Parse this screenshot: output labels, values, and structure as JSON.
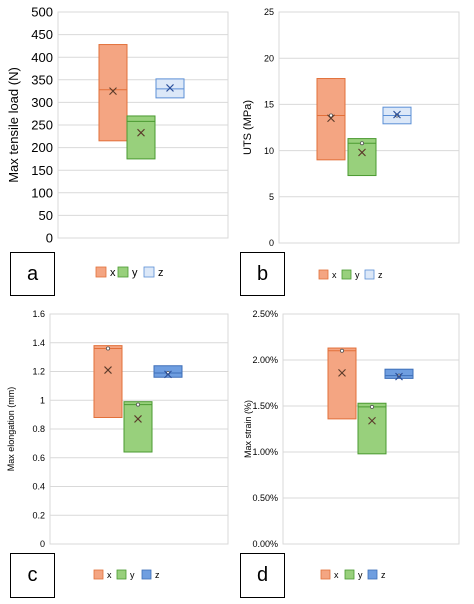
{
  "chart_data": [
    {
      "type": "box",
      "panel_label": "a",
      "ylabel": "Max tensile load (N)",
      "ylim": [
        0,
        500
      ],
      "yticks": [
        "0",
        "50",
        "100",
        "150",
        "200",
        "250",
        "300",
        "350",
        "400",
        "450",
        "500"
      ],
      "ytick_values": [
        0,
        50,
        100,
        150,
        200,
        250,
        300,
        350,
        400,
        450,
        500
      ],
      "grid": true,
      "legend": "bottom",
      "series": [
        {
          "name": "x",
          "q1": 215,
          "median": 328,
          "q3": 428,
          "mean": 325,
          "color": "#f4a582",
          "edge": "#e2703a"
        },
        {
          "name": "y",
          "q1": 175,
          "median": 258,
          "q3": 270,
          "mean": 233,
          "color": "#98d07c",
          "edge": "#4a9a30"
        },
        {
          "name": "z",
          "q1": 310,
          "median": 330,
          "q3": 352,
          "mean": 332,
          "color": "#dce8f8",
          "edge": "#5b8fd6"
        }
      ]
    },
    {
      "type": "box",
      "panel_label": "b",
      "ylabel": "UTS (MPa)",
      "ylim": [
        0,
        25
      ],
      "yticks": [
        "0",
        "5",
        "10",
        "15",
        "20",
        "25"
      ],
      "ytick_values": [
        0,
        5,
        10,
        15,
        20,
        25
      ],
      "grid": true,
      "legend": "bottom",
      "series": [
        {
          "name": "x",
          "q1": 9.0,
          "median": 13.8,
          "q3": 17.8,
          "mean": 13.5,
          "color": "#f4a582",
          "edge": "#e2703a"
        },
        {
          "name": "y",
          "q1": 7.3,
          "median": 10.8,
          "q3": 11.3,
          "mean": 9.8,
          "color": "#98d07c",
          "edge": "#4a9a30"
        },
        {
          "name": "z",
          "q1": 12.9,
          "median": 13.8,
          "q3": 14.7,
          "mean": 13.9,
          "color": "#dce8f8",
          "edge": "#5b8fd6"
        }
      ]
    },
    {
      "type": "box",
      "panel_label": "c",
      "ylabel": "Max elongation (mm)",
      "ylim": [
        0,
        1.6
      ],
      "yticks": [
        "0",
        "0.2",
        "0.4",
        "0.6",
        "0.8",
        "1",
        "1.2",
        "1.4",
        "1.6"
      ],
      "ytick_values": [
        0,
        0.2,
        0.4,
        0.6,
        0.8,
        1.0,
        1.2,
        1.4,
        1.6
      ],
      "grid": true,
      "legend": "bottom",
      "series": [
        {
          "name": "x",
          "q1": 0.88,
          "median": 1.36,
          "q3": 1.38,
          "mean": 1.21,
          "color": "#f4a582",
          "edge": "#e2703a"
        },
        {
          "name": "y",
          "q1": 0.64,
          "median": 0.97,
          "q3": 0.99,
          "mean": 0.87,
          "color": "#98d07c",
          "edge": "#4a9a30"
        },
        {
          "name": "z",
          "q1": 1.16,
          "median": 1.19,
          "q3": 1.24,
          "mean": 1.18,
          "color": "#6f9ee0",
          "edge": "#3e6fb8"
        }
      ]
    },
    {
      "type": "box",
      "panel_label": "d",
      "ylabel": "Max strain (%)",
      "ylim": [
        0,
        2.5
      ],
      "yticks": [
        "0.00%",
        "0.50%",
        "1.00%",
        "1.50%",
        "2.00%",
        "2.50%"
      ],
      "ytick_values": [
        0,
        0.5,
        1.0,
        1.5,
        2.0,
        2.5
      ],
      "grid": true,
      "legend": "bottom",
      "series": [
        {
          "name": "x",
          "q1": 1.36,
          "median": 2.1,
          "q3": 2.13,
          "mean": 1.86,
          "color": "#f4a582",
          "edge": "#e2703a"
        },
        {
          "name": "y",
          "q1": 0.98,
          "median": 1.49,
          "q3": 1.53,
          "mean": 1.34,
          "color": "#98d07c",
          "edge": "#4a9a30"
        },
        {
          "name": "z",
          "q1": 1.8,
          "median": 1.83,
          "q3": 1.9,
          "mean": 1.82,
          "color": "#6f9ee0",
          "edge": "#3e6fb8"
        }
      ]
    }
  ]
}
